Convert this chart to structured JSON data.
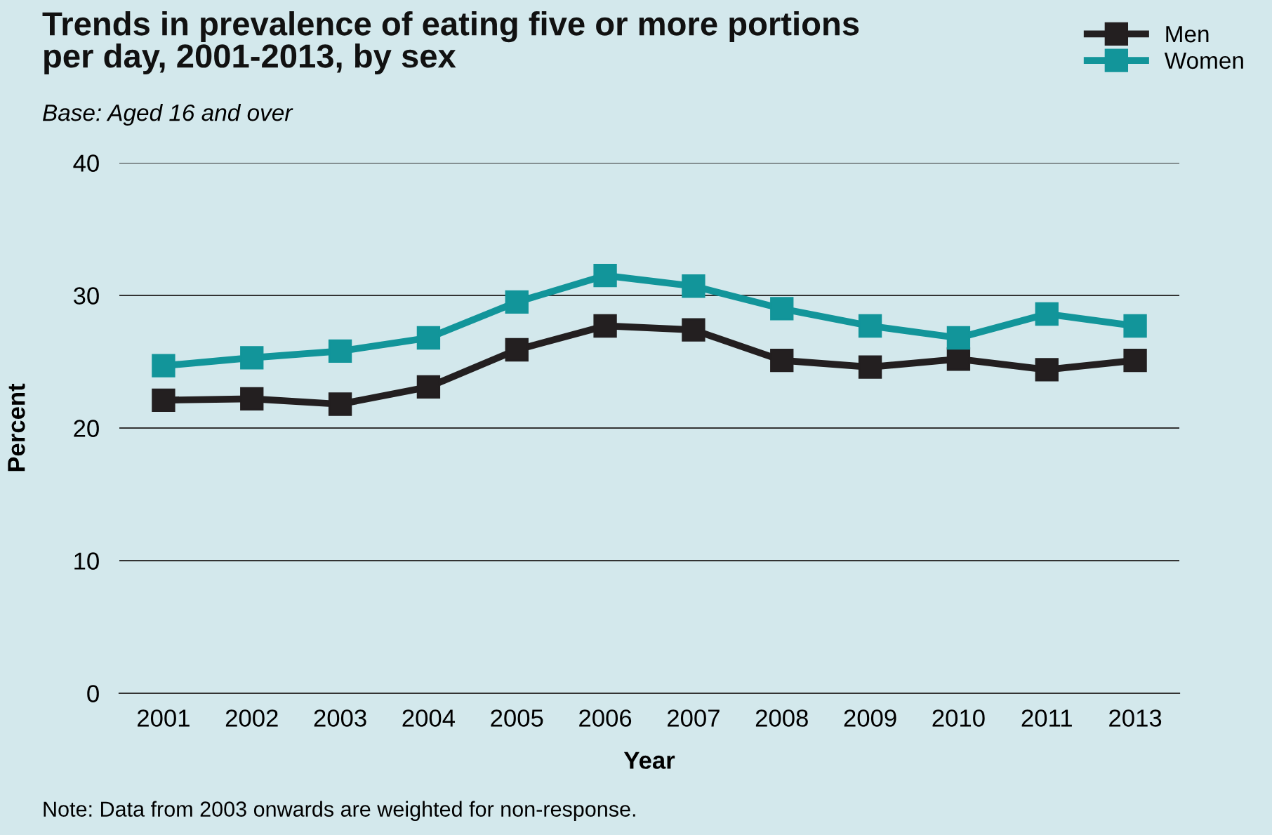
{
  "chart_data": {
    "type": "line",
    "title": "Trends in prevalence of eating five or more portions\nper day, 2001-2013, by sex",
    "subtitle": "Base: Aged 16 and over",
    "xlabel": "Year",
    "ylabel": "Percent",
    "categories": [
      "2001",
      "2002",
      "2003",
      "2004",
      "2005",
      "2006",
      "2007",
      "2008",
      "2009",
      "2010",
      "2011",
      "2013"
    ],
    "series": [
      {
        "name": "Men",
        "color": "#231f20",
        "values": [
          22.1,
          22.2,
          21.8,
          23.1,
          25.9,
          27.7,
          27.4,
          25.1,
          24.6,
          25.2,
          24.4,
          25.1
        ]
      },
      {
        "name": "Women",
        "color": "#12959a",
        "values": [
          24.7,
          25.3,
          25.8,
          26.8,
          29.5,
          31.5,
          30.7,
          29.0,
          27.7,
          26.8,
          28.6,
          27.7
        ]
      }
    ],
    "ylim": [
      0,
      40
    ],
    "yticks": [
      0,
      10,
      20,
      30,
      40
    ],
    "grid": "y",
    "legend": "top right",
    "marker": "square",
    "line_style": "solid",
    "annotations": [
      "Note: Data from 2003 onwards are weighted for non-response."
    ]
  }
}
